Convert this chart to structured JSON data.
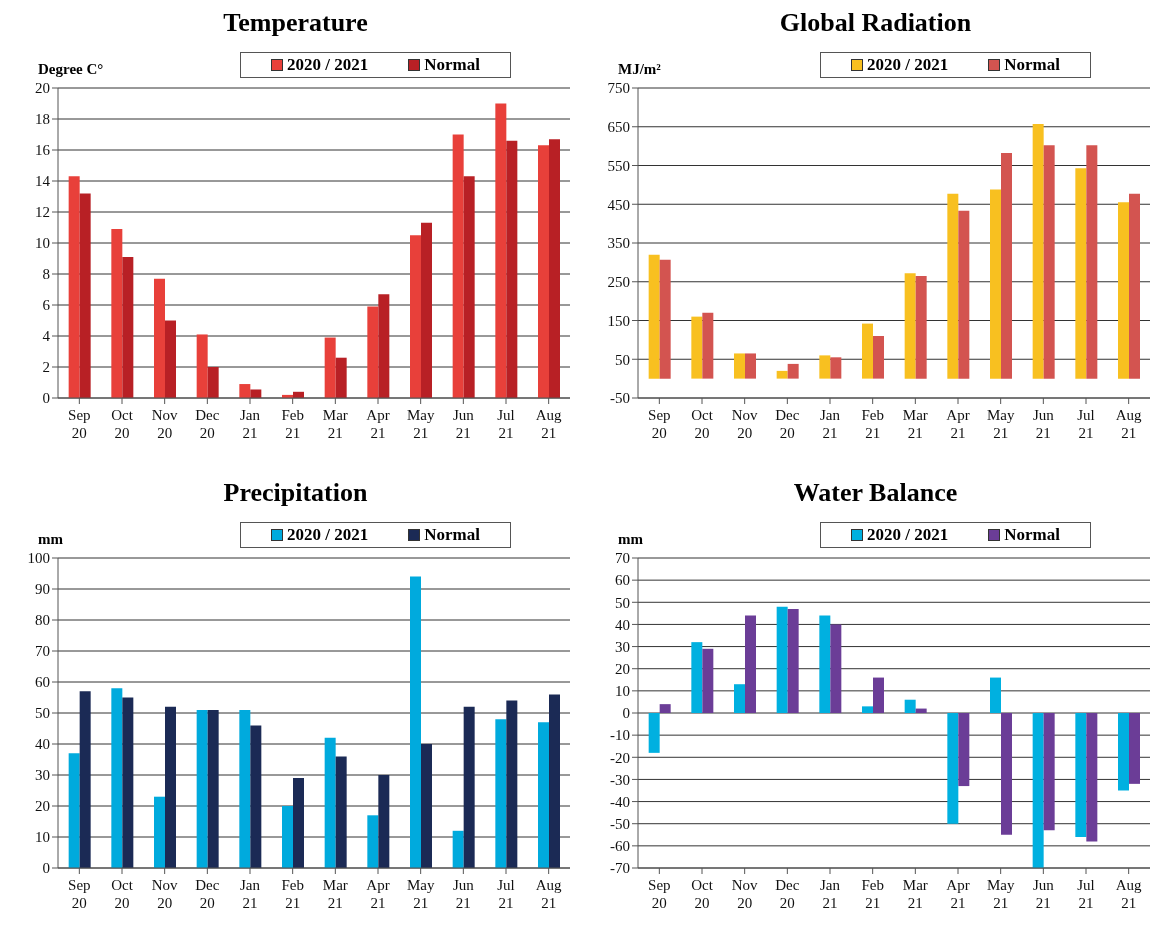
{
  "chart_data": [
    {
      "type": "bar",
      "title": "Temperature",
      "ylabel": "Degree C°",
      "categories": [
        "Sep 20",
        "Oct 20",
        "Nov 20",
        "Dec 20",
        "Jan 21",
        "Feb 21",
        "Mar 21",
        "Apr 21",
        "May 21",
        "Jun 21",
        "Jul 21",
        "Aug 21"
      ],
      "series": [
        {
          "name": "2020 / 2021",
          "color": "#e8403a",
          "values": [
            14.3,
            10.9,
            7.7,
            4.1,
            0.9,
            0.2,
            3.9,
            5.9,
            10.5,
            17.0,
            19.0,
            16.3
          ]
        },
        {
          "name": "Normal",
          "color": "#b82025",
          "values": [
            13.2,
            9.1,
            5.0,
            2.0,
            0.55,
            0.4,
            2.6,
            6.7,
            11.3,
            14.3,
            16.6,
            16.7
          ]
        }
      ],
      "ylim": [
        0,
        20
      ],
      "yticks": [
        0,
        2,
        4,
        6,
        8,
        10,
        12,
        14,
        16,
        18,
        20
      ],
      "grid": "y",
      "legend": "top"
    },
    {
      "type": "bar",
      "title": "Global Radiation",
      "ylabel": "MJ/m²",
      "categories": [
        "Sep 20",
        "Oct 20",
        "Nov 20",
        "Dec 20",
        "Jan 21",
        "Feb 21",
        "Mar 21",
        "Apr 21",
        "May 21",
        "Jun 21",
        "Jul 21",
        "Aug 21"
      ],
      "series": [
        {
          "name": "2020 / 2021",
          "color": "#f8c020",
          "values": [
            320,
            160,
            65,
            20,
            60,
            142,
            272,
            477,
            488,
            657,
            543,
            455
          ]
        },
        {
          "name": "Normal",
          "color": "#d35450",
          "values": [
            307,
            170,
            65,
            38,
            55,
            110,
            265,
            433,
            582,
            602,
            602,
            477
          ]
        }
      ],
      "ylim": [
        -50,
        750
      ],
      "yticks": [
        -50,
        50,
        150,
        250,
        350,
        450,
        550,
        650,
        750
      ],
      "grid": "y",
      "legend": "top"
    },
    {
      "type": "bar",
      "title": "Precipitation",
      "ylabel": "mm",
      "categories": [
        "Sep 20",
        "Oct 20",
        "Nov 20",
        "Dec 20",
        "Jan 21",
        "Feb 21",
        "Mar 21",
        "Apr 21",
        "May 21",
        "Jun 21",
        "Jul 21",
        "Aug 21"
      ],
      "series": [
        {
          "name": "2020 / 2021",
          "color": "#00aadd",
          "values": [
            37,
            58,
            23,
            51,
            51,
            20,
            42,
            17,
            94,
            12,
            48,
            47
          ]
        },
        {
          "name": "Normal",
          "color": "#1b2a55",
          "values": [
            57,
            55,
            52,
            51,
            46,
            29,
            36,
            30,
            40,
            52,
            54,
            56
          ]
        }
      ],
      "ylim": [
        0,
        100
      ],
      "yticks": [
        0,
        10,
        20,
        30,
        40,
        50,
        60,
        70,
        80,
        90,
        100
      ],
      "grid": "y",
      "legend": "top"
    },
    {
      "type": "bar",
      "title": "Water Balance",
      "ylabel": "mm",
      "categories": [
        "Sep 20",
        "Oct 20",
        "Nov 20",
        "Dec 20",
        "Jan 21",
        "Feb 21",
        "Mar 21",
        "Apr 21",
        "May 21",
        "Jun 21",
        "Jul 21",
        "Aug 21"
      ],
      "series": [
        {
          "name": "2020 / 2021",
          "color": "#00b0e0",
          "values": [
            -18,
            32,
            13,
            48,
            44,
            3,
            6,
            -50,
            16,
            -70,
            -56,
            -35
          ]
        },
        {
          "name": "Normal",
          "color": "#6b3d97",
          "values": [
            4,
            29,
            44,
            47,
            40,
            16,
            2,
            -33,
            -55,
            -53,
            -58,
            -32
          ]
        }
      ],
      "ylim": [
        -70,
        70
      ],
      "yticks": [
        -70,
        -60,
        -50,
        -40,
        -30,
        -20,
        -10,
        0,
        10,
        20,
        30,
        40,
        50,
        60,
        70
      ],
      "grid": "y",
      "legend": "top"
    }
  ]
}
